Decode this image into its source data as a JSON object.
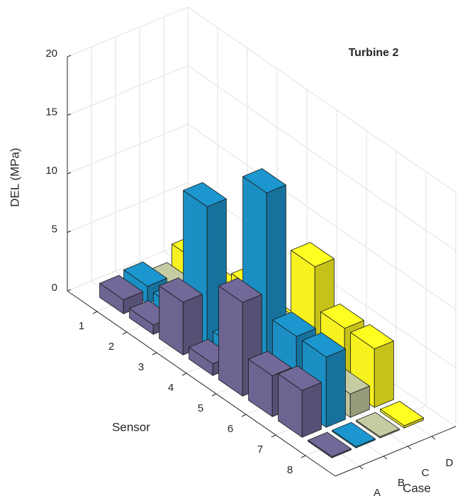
{
  "chart_data": {
    "type": "bar3d",
    "title": "Turbine 2",
    "x_label": "Sensor",
    "case_label": "Case",
    "y_label": "DEL (MPa)",
    "categories": [
      "1",
      "2",
      "3",
      "4",
      "5",
      "6",
      "7",
      "8"
    ],
    "series": [
      {
        "name": "A",
        "color": "#6c6491",
        "values": [
          1.2,
          0.8,
          4.5,
          1.0,
          8.0,
          3.5,
          4.0,
          0.1
        ]
      },
      {
        "name": "B",
        "color": "#1b8fc4",
        "values": [
          1.5,
          1.3,
          11.8,
          1.5,
          16.5,
          6.0,
          6.0,
          0.1
        ]
      },
      {
        "name": "C",
        "color": "#bcc29a",
        "values": [
          0.6,
          0.3,
          1.0,
          0.5,
          3.5,
          3.0,
          2.0,
          0.1
        ]
      },
      {
        "name": "D",
        "color": "#f7f21f",
        "values": [
          2.0,
          1.0,
          3.0,
          1.5,
          8.5,
          5.0,
          5.0,
          0.2
        ]
      }
    ],
    "ylim": [
      0,
      20
    ],
    "yticks": [
      0,
      5,
      10,
      15,
      20
    ],
    "grid": true
  }
}
